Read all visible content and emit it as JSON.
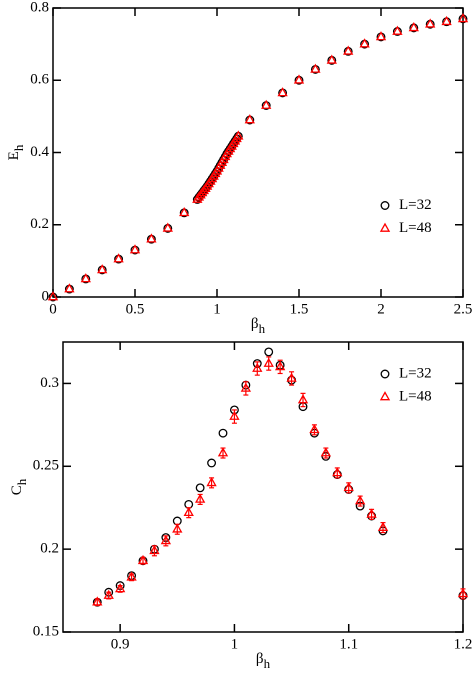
{
  "chart_data": [
    {
      "type": "scatter",
      "x": [
        0,
        0.1,
        0.2,
        0.3,
        0.4,
        0.5,
        0.6,
        0.7,
        0.8,
        0.88,
        0.89,
        0.9,
        0.91,
        0.92,
        0.93,
        0.94,
        0.95,
        0.96,
        0.97,
        0.98,
        0.99,
        1.0,
        1.01,
        1.02,
        1.03,
        1.04,
        1.05,
        1.06,
        1.07,
        1.08,
        1.09,
        1.1,
        1.11,
        1.12,
        1.13,
        1.2,
        1.3,
        1.4,
        1.5,
        1.6,
        1.7,
        1.8,
        1.9,
        2.0,
        2.1,
        2.2,
        2.3,
        2.4,
        2.5
      ],
      "series": [
        {
          "name": "L=32",
          "color": "#000000",
          "marker": "circle",
          "values": [
            0,
            0.022,
            0.05,
            0.075,
            0.105,
            0.13,
            0.16,
            0.19,
            0.233,
            0.27,
            0.276,
            0.282,
            0.288,
            0.294,
            0.3,
            0.306,
            0.313,
            0.32,
            0.327,
            0.334,
            0.341,
            0.348,
            0.356,
            0.364,
            0.372,
            0.38,
            0.388,
            0.396,
            0.403,
            0.41,
            0.417,
            0.424,
            0.431,
            0.438,
            0.445,
            0.49,
            0.53,
            0.565,
            0.6,
            0.63,
            0.655,
            0.68,
            0.7,
            0.72,
            0.735,
            0.745,
            0.755,
            0.762,
            0.77
          ]
        },
        {
          "name": "L=48",
          "color": "#ff0000",
          "marker": "triangle",
          "values": [
            0,
            0.022,
            0.05,
            0.075,
            0.105,
            0.13,
            0.16,
            0.19,
            0.233,
            0.27,
            0.276,
            0.282,
            0.288,
            0.294,
            0.3,
            0.306,
            0.313,
            0.32,
            0.327,
            0.334,
            0.341,
            0.348,
            0.356,
            0.364,
            0.372,
            0.38,
            0.388,
            0.396,
            0.403,
            0.41,
            0.417,
            0.424,
            0.431,
            0.438,
            0.445,
            0.49,
            0.53,
            0.565,
            0.6,
            0.63,
            0.655,
            0.68,
            0.7,
            0.72,
            0.735,
            0.745,
            0.755,
            0.762,
            0.77
          ]
        }
      ],
      "xlim": [
        0,
        2.5
      ],
      "ylim": [
        0,
        0.8
      ],
      "xticks": [
        0,
        0.5,
        1,
        1.5,
        2,
        2.5
      ],
      "yticks": [
        0,
        0.2,
        0.4,
        0.6,
        0.8
      ],
      "xlabel": {
        "main": "β",
        "sub": "h"
      },
      "ylabel": {
        "main": "E",
        "sub": "h"
      },
      "legend": "center right"
    },
    {
      "type": "scatter",
      "x": [
        0.88,
        0.89,
        0.9,
        0.91,
        0.92,
        0.93,
        0.94,
        0.95,
        0.96,
        0.97,
        0.98,
        0.99,
        1.0,
        1.01,
        1.02,
        1.03,
        1.04,
        1.05,
        1.06,
        1.07,
        1.08,
        1.09,
        1.1,
        1.11,
        1.12,
        1.13,
        1.2
      ],
      "series": [
        {
          "name": "L=32",
          "color": "#000000",
          "marker": "circle",
          "values": [
            0.168,
            0.174,
            0.178,
            0.184,
            0.193,
            0.2,
            0.207,
            0.217,
            0.227,
            0.237,
            0.252,
            0.27,
            0.284,
            0.299,
            0.312,
            0.319,
            0.311,
            0.302,
            0.286,
            0.27,
            0.256,
            0.245,
            0.236,
            0.226,
            0.22,
            0.211,
            0.172
          ]
        },
        {
          "name": "L=48",
          "color": "#ff0000",
          "marker": "triangle",
          "values": [
            0.168,
            0.172,
            0.176,
            0.183,
            0.193,
            0.199,
            0.205,
            0.212,
            0.222,
            0.23,
            0.24,
            0.258,
            0.28,
            0.297,
            0.309,
            0.312,
            0.31,
            0.303,
            0.29,
            0.272,
            0.258,
            0.246,
            0.237,
            0.229,
            0.221,
            0.213,
            0.173
          ],
          "errors": [
            0.002,
            0.002,
            0.002,
            0.002,
            0.002,
            0.003,
            0.003,
            0.003,
            0.003,
            0.003,
            0.003,
            0.003,
            0.004,
            0.004,
            0.004,
            0.004,
            0.004,
            0.004,
            0.004,
            0.003,
            0.003,
            0.003,
            0.003,
            0.003,
            0.003,
            0.003,
            0.003
          ]
        }
      ],
      "xlim": [
        0.85,
        1.2
      ],
      "ylim": [
        0.15,
        0.325
      ],
      "xticks": [
        0.9,
        1,
        1.1,
        1.2
      ],
      "yticks": [
        0.15,
        0.2,
        0.25,
        0.3
      ],
      "xlabel": {
        "main": "β",
        "sub": "h"
      },
      "ylabel": {
        "main": "C",
        "sub": "h"
      },
      "legend": "upper right"
    }
  ]
}
